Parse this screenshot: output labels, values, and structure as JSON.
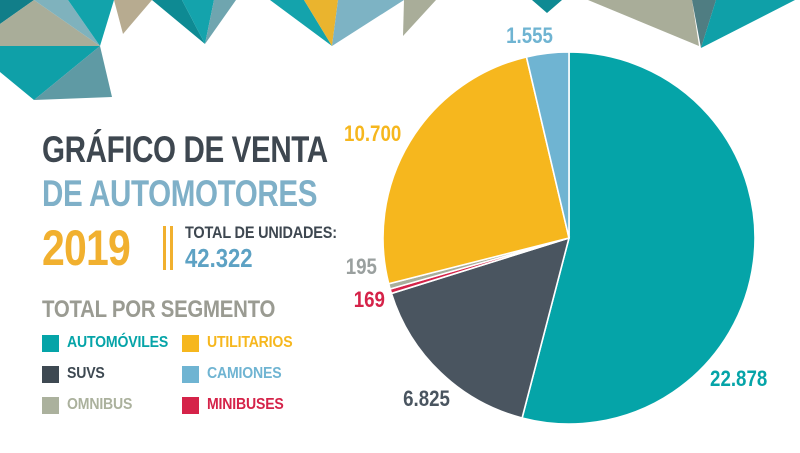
{
  "infographic": {
    "title_line1": "GRÁFICO DE VENTA",
    "title_line2": "DE AUTOMOTORES",
    "year": "2019",
    "total_units_label": "TOTAL DE UNIDADES:",
    "total_units_value": "42.322"
  },
  "legend": {
    "heading": "TOTAL POR SEGMENTO",
    "items": [
      {
        "label": "AUTOMÓVILES",
        "color": "#05a4a8"
      },
      {
        "label": "UTILITARIOS",
        "color": "#f6b71e"
      },
      {
        "label": "SUVS",
        "color": "#3e4952"
      },
      {
        "label": "CAMIONES",
        "color": "#6fb4d2"
      },
      {
        "label": "OMNIBUS",
        "color": "#abb19d"
      },
      {
        "label": "MINIBUSES",
        "color": "#d52349"
      }
    ]
  },
  "chart_data": {
    "type": "pie",
    "title": "Gráfico de venta de automotores 2019",
    "total": 42322,
    "total_display": "42.322",
    "start_angle_deg": 0,
    "direction": "clockwise",
    "legend_position": "left",
    "segments": [
      {
        "label": "AUTOMÓVILES",
        "value": 22878,
        "display": "22.878",
        "color": "#05a4a8"
      },
      {
        "label": "SUVS",
        "value": 6825,
        "display": "6.825",
        "color": "#4a5560"
      },
      {
        "label": "MINIBUSES",
        "value": 169,
        "display": "169",
        "color": "#d52349"
      },
      {
        "label": "OMNIBUS",
        "value": 195,
        "display": "195",
        "color": "#a8ae9c"
      },
      {
        "label": "UTILITARIOS",
        "value": 10700,
        "display": "10.700",
        "color": "#f6b71e"
      },
      {
        "label": "CAMIONES",
        "value": 1555,
        "display": "1.555",
        "color": "#6fb4d2"
      }
    ]
  }
}
